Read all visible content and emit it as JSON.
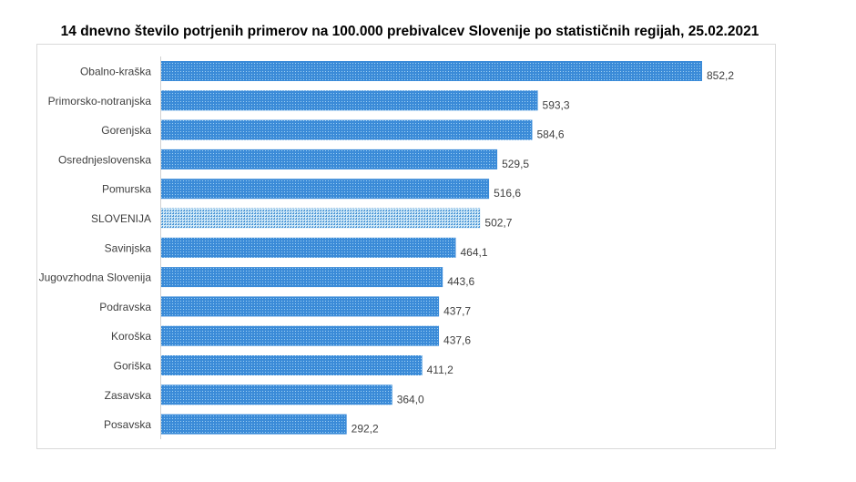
{
  "chart_data": {
    "type": "bar",
    "orientation": "horizontal",
    "title": "14 dnevno število potrjenih primerov na 100.000 prebivalcev Slovenije po statističnih regijah, 25.02.2021",
    "categories": [
      "Obalno-kraška",
      "Primorsko-notranjska",
      "Gorenjska",
      "Osrednjeslovenska",
      "Pomurska",
      "SLOVENIJA",
      "Savinjska",
      "Jugovzhodna Slovenija",
      "Podravska",
      "Koroška",
      "Goriška",
      "Zasavska",
      "Posavska"
    ],
    "values": [
      852.2,
      593.3,
      584.6,
      529.5,
      516.6,
      502.7,
      464.1,
      443.6,
      437.7,
      437.6,
      411.2,
      364.0,
      292.2
    ],
    "labels": [
      "852,2",
      "593,3",
      "584,6",
      "529,5",
      "516,6",
      "502,7",
      "464,1",
      "443,6",
      "437,7",
      "437,6",
      "411,2",
      "364,0",
      "292,2"
    ],
    "highlight": "SLOVENIJA",
    "xlim": [
      0,
      852.2
    ],
    "grid": false,
    "legend": "none",
    "colors": {
      "bar": "#3b8bd8",
      "highlight": "#8ec6ea",
      "axis": "#d0d0d0"
    }
  }
}
